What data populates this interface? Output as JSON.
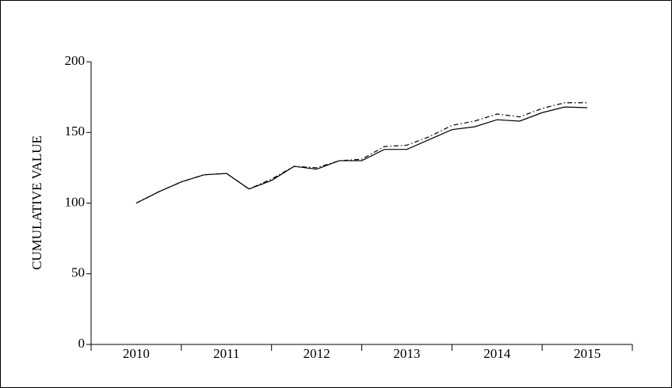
{
  "chart_data": {
    "type": "line",
    "ylabel": "CUMULATIVE VALUE",
    "categories": [
      "2010",
      null,
      null,
      null,
      "2011",
      null,
      null,
      null,
      "2012",
      null,
      null,
      null,
      "2013",
      null,
      null,
      null,
      "2014",
      null,
      null,
      null,
      "2015"
    ],
    "series": [
      {
        "color": "#000000",
        "dash": "solid",
        "values": [
          100,
          108,
          115,
          120,
          121,
          110,
          116,
          126,
          124,
          130,
          130,
          138,
          138,
          145,
          152,
          154,
          159,
          158,
          164,
          168,
          167.5
        ]
      },
      {
        "color": "#000000",
        "dash": "dashdot",
        "values": [
          100,
          108,
          115,
          120,
          121,
          110,
          117,
          126,
          125,
          130,
          131,
          140,
          141,
          147,
          155,
          158,
          163,
          161,
          167,
          171,
          171
        ]
      }
    ],
    "ylim": [
      0,
      200
    ],
    "yticks": [
      0,
      50,
      100,
      150,
      200
    ],
    "grid": false
  }
}
